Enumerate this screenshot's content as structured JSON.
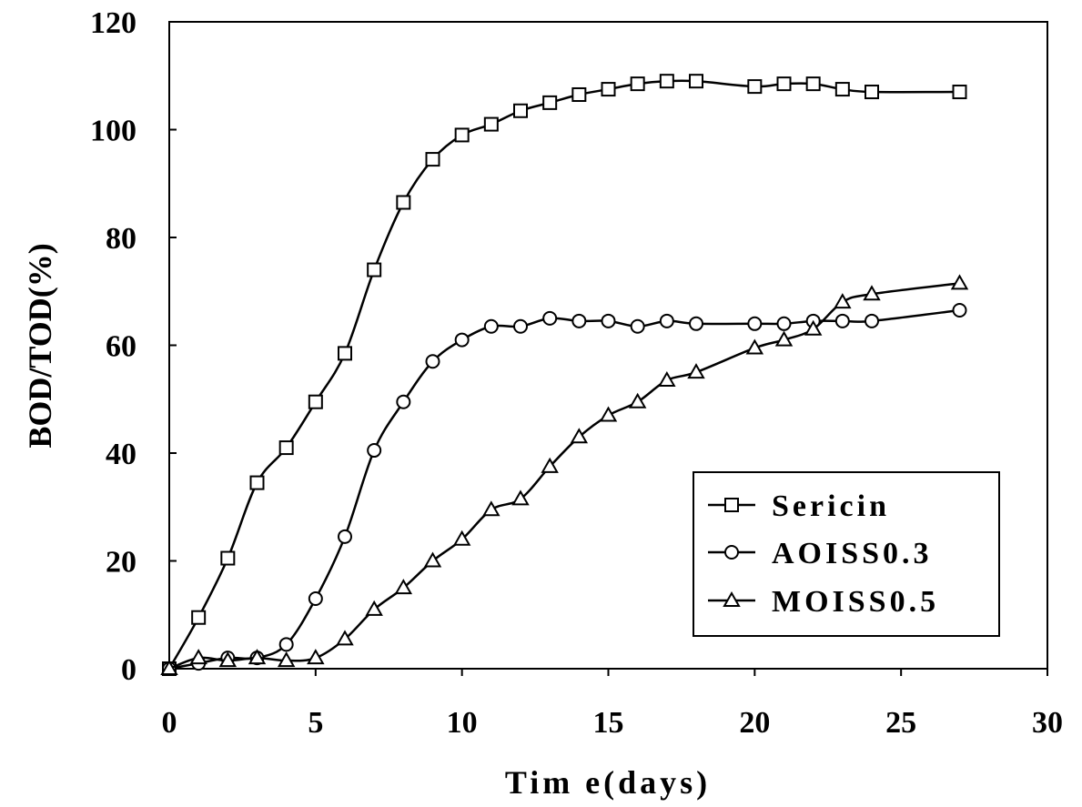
{
  "chart_data": {
    "type": "line",
    "title": "",
    "xlabel": "Tim e(days)",
    "ylabel": "BOD/TOD(%)",
    "xlim": [
      0,
      30
    ],
    "ylim": [
      0,
      120
    ],
    "x_ticks": [
      0,
      5,
      10,
      15,
      20,
      25,
      30
    ],
    "y_ticks": [
      0,
      20,
      40,
      60,
      80,
      100,
      120
    ],
    "grid": false,
    "legend_position": "bottom-right",
    "series": [
      {
        "name": "Sericin",
        "marker": "square",
        "x": [
          0,
          1,
          2,
          3,
          4,
          5,
          6,
          7,
          8,
          9,
          10,
          11,
          12,
          13,
          14,
          15,
          16,
          17,
          18,
          20,
          21,
          22,
          23,
          24,
          27
        ],
        "y": [
          0,
          9.5,
          20.5,
          34.5,
          41,
          49.5,
          58.5,
          74,
          86.5,
          94.5,
          99,
          101,
          103.5,
          105,
          106.5,
          107.5,
          108.5,
          109,
          109,
          108,
          108.5,
          108.5,
          107.5,
          107,
          107
        ]
      },
      {
        "name": "AOISS0.3",
        "marker": "circle",
        "x": [
          0,
          1,
          2,
          3,
          4,
          5,
          6,
          7,
          8,
          9,
          10,
          11,
          12,
          13,
          14,
          15,
          16,
          17,
          18,
          20,
          21,
          22,
          23,
          24,
          27
        ],
        "y": [
          0,
          1,
          2,
          2,
          4.5,
          13,
          24.5,
          40.5,
          49.5,
          57,
          61,
          63.5,
          63.5,
          65,
          64.5,
          64.5,
          63.5,
          64.5,
          64,
          64,
          64,
          64.5,
          64.5,
          64.5,
          66.5
        ]
      },
      {
        "name": "MOISS0.5",
        "marker": "triangle",
        "x": [
          0,
          1,
          2,
          3,
          4,
          5,
          6,
          7,
          8,
          9,
          10,
          11,
          12,
          13,
          14,
          15,
          16,
          17,
          18,
          20,
          21,
          22,
          23,
          24,
          27
        ],
        "y": [
          0,
          2,
          1.5,
          2,
          1.5,
          2,
          5.5,
          11,
          15,
          20,
          24,
          29.5,
          31.5,
          37.5,
          43,
          47,
          49.5,
          53.5,
          55,
          59.5,
          61,
          63,
          68,
          69.5,
          71.5
        ]
      }
    ]
  }
}
